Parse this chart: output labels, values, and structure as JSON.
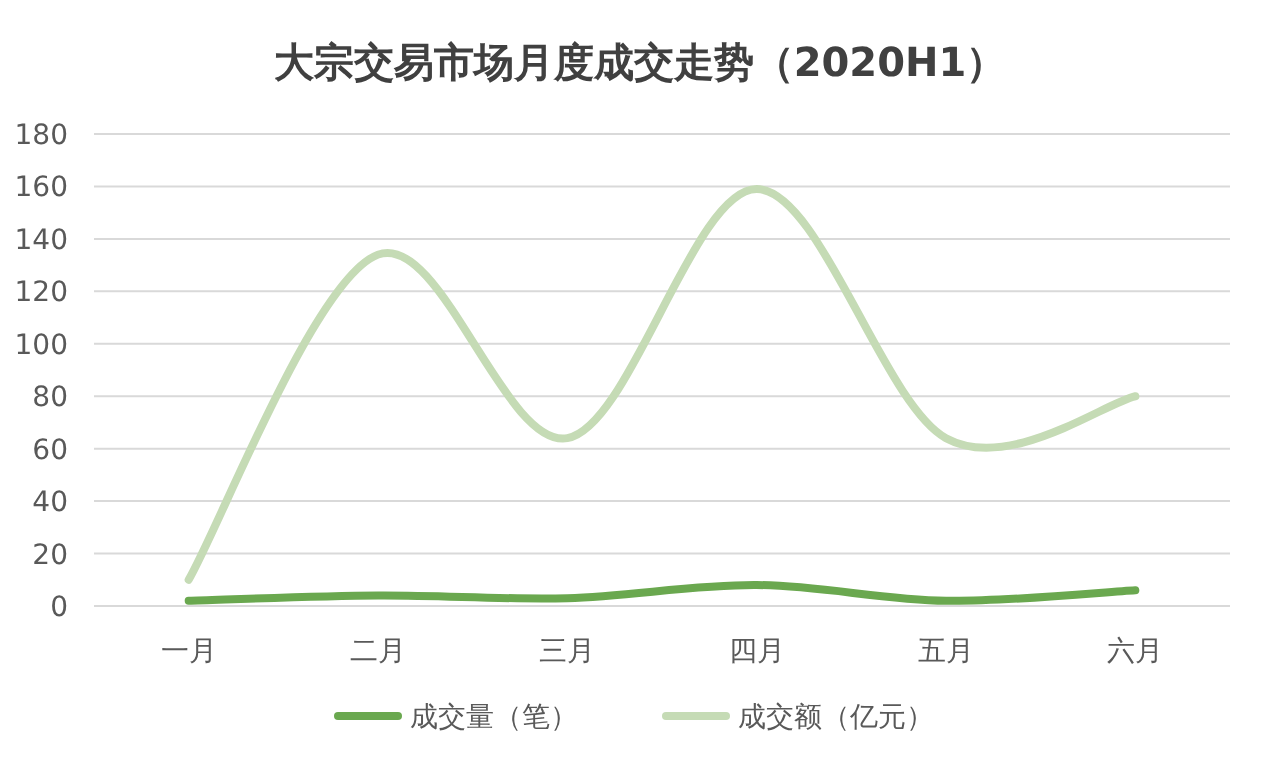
{
  "chart_data": {
    "type": "line",
    "title": "大宗交易市场月度成交走势（2020H1）",
    "categories": [
      "一月",
      "二月",
      "三月",
      "四月",
      "五月",
      "六月"
    ],
    "series": [
      {
        "name": "成交量（笔）",
        "color": "#6aa84f",
        "values": [
          2,
          4,
          3,
          8,
          2,
          6
        ]
      },
      {
        "name": "成交额（亿元）",
        "color": "#c5dbb5",
        "values": [
          10,
          134,
          64,
          159,
          64,
          80
        ]
      }
    ],
    "ylim": [
      0,
      180
    ],
    "yticks": [
      0,
      20,
      40,
      60,
      80,
      100,
      120,
      140,
      160,
      180
    ],
    "grid": "y",
    "legend": "bottom",
    "marker": "none",
    "line_style": "solid"
  }
}
